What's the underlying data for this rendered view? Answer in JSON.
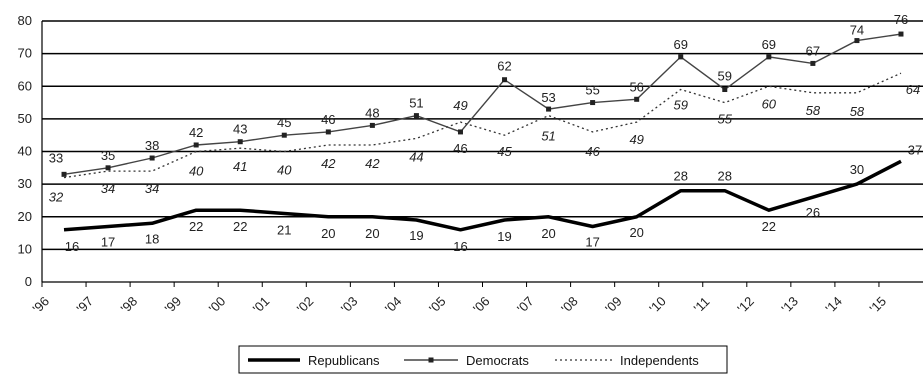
{
  "chart_data": {
    "type": "line",
    "categories": [
      "'96",
      "'97",
      "'98",
      "'99",
      "'00",
      "'01",
      "'02",
      "'03",
      "'04",
      "'05",
      "'06",
      "'07",
      "'08",
      "'09",
      "'10",
      "'11",
      "'12",
      "'13",
      "'14",
      "'15"
    ],
    "x_positions": [
      1996.5,
      1997.5,
      1998.5,
      1999.5,
      2000.5,
      2001.5,
      2002.5,
      2003.5,
      2004.5,
      2005.5,
      2006.5,
      2007.5,
      2008.5,
      2009.5,
      2010.5,
      2011.5,
      2012.5,
      2013.5,
      2014.5,
      2015.5
    ],
    "series": [
      {
        "name": "Republicans",
        "style": "thick",
        "x": [
          1996.5,
          1997.5,
          1998.5,
          1999.5,
          2000.5,
          2001.5,
          2002.5,
          2003.5,
          2004.5,
          2005.5,
          2006.5,
          2007.5,
          2008.5,
          2009.5,
          2010.5,
          2011.5,
          2012.5,
          2013.5,
          2014.5,
          2015.5
        ],
        "values": [
          16,
          17,
          18,
          22,
          22,
          21,
          20,
          20,
          19,
          16,
          19,
          20,
          17,
          20,
          28,
          28,
          22,
          26,
          30,
          37
        ],
        "labels": [
          "16",
          "17",
          "18",
          "22",
          "22",
          "21",
          "20",
          "20",
          "19",
          "16",
          "19",
          "20",
          "17",
          "20",
          "28",
          "28",
          "22",
          "26",
          "30",
          "37"
        ]
      },
      {
        "name": "Democrats",
        "style": "marker",
        "x": [
          1996.5,
          1997.5,
          1998.5,
          1999.5,
          2000.5,
          2001.5,
          2002.5,
          2003.5,
          2004.5,
          2005.5,
          2006.5,
          2007.5,
          2008.5,
          2009.5,
          2010.5,
          2011.5,
          2012.5,
          2013.5,
          2014.5,
          2015.5
        ],
        "values": [
          33,
          35,
          38,
          42,
          43,
          45,
          46,
          48,
          51,
          46,
          62,
          53,
          55,
          56,
          69,
          59,
          69,
          67,
          74,
          76
        ],
        "labels": [
          "33",
          "35",
          "38",
          "42",
          "43",
          "45",
          "46",
          "48",
          "51",
          "46",
          "62",
          "53",
          "55",
          "56",
          "69",
          "59",
          "69",
          "67",
          "74",
          "76"
        ]
      },
      {
        "name": "Independents",
        "style": "dotted",
        "x": [
          1996.5,
          1997.5,
          1998.5,
          1999.5,
          2000.5,
          2001.5,
          2002.5,
          2003.5,
          2004.5,
          2005.5,
          2006.5,
          2007.5,
          2008.5,
          2009.5,
          2010.5,
          2011.5,
          2012.5,
          2013.5,
          2014.5,
          2015.5
        ],
        "values": [
          32,
          34,
          34,
          40,
          41,
          40,
          42,
          42,
          44,
          49,
          45,
          51,
          46,
          49,
          59,
          55,
          60,
          58,
          58,
          64
        ],
        "labels": [
          "32",
          "34",
          "34",
          "40",
          "41",
          "40",
          "42",
          "42",
          "44",
          "49",
          "45",
          "51",
          "46",
          "49",
          "59",
          "55",
          "60",
          "58",
          "58",
          "64"
        ]
      }
    ],
    "title": "",
    "xlabel": "",
    "ylabel": "",
    "xlim": [
      1996,
      2016
    ],
    "ylim": [
      0,
      80
    ],
    "y_ticks": [
      "0",
      "10",
      "20",
      "30",
      "40",
      "50",
      "60",
      "70",
      "80"
    ],
    "grid": true,
    "legend": {
      "placement": "bottom-center",
      "entries": [
        "Republicans",
        "Democrats",
        "Independents"
      ]
    }
  }
}
